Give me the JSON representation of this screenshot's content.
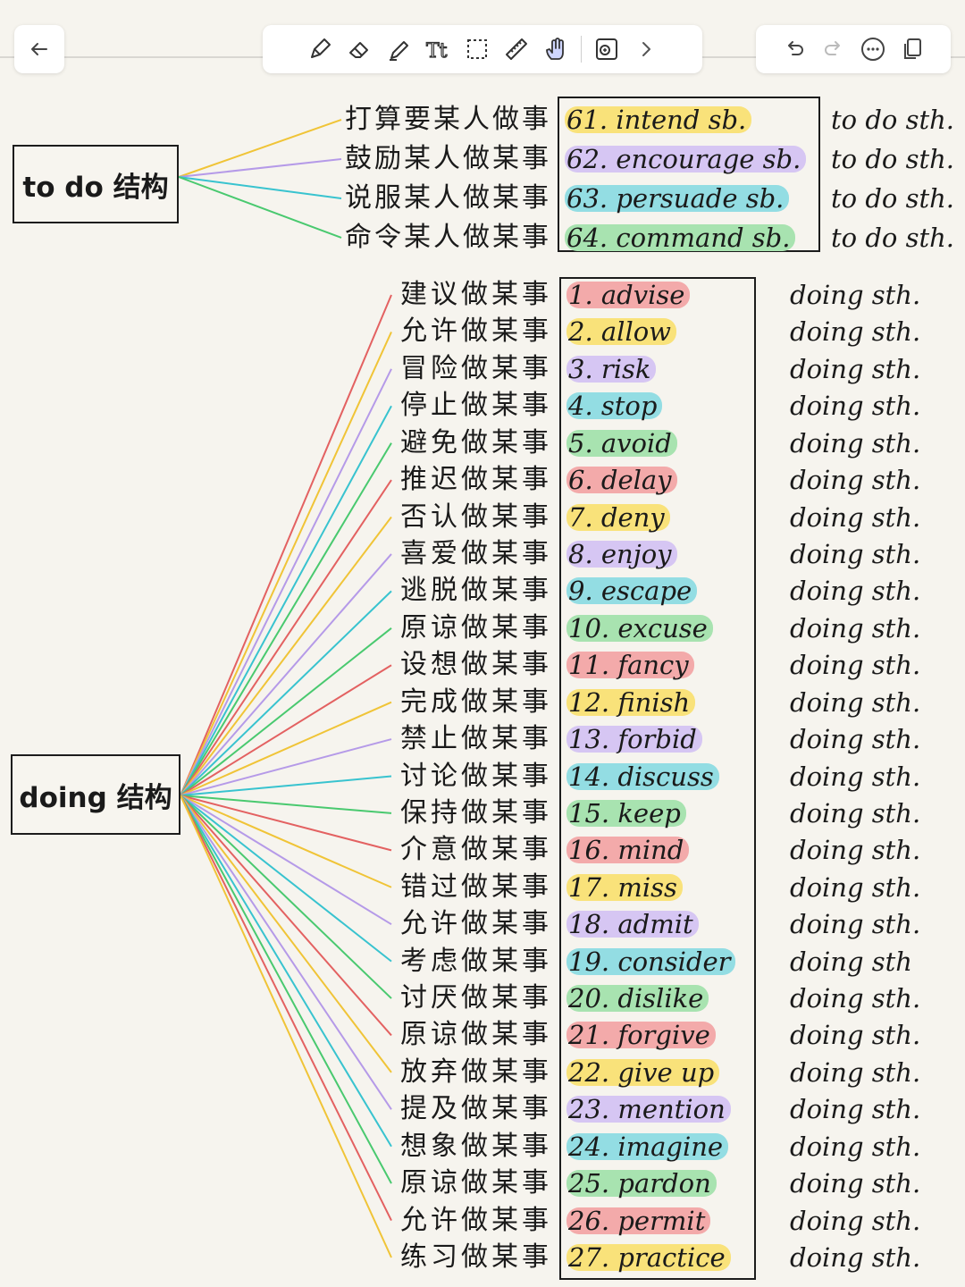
{
  "toolbar": {
    "left_icons": [
      "back-arrow-icon"
    ],
    "center_icons": [
      "pen-icon",
      "eraser-icon",
      "highlighter-icon",
      "text-tool-icon",
      "lasso-select-icon",
      "ruler-icon",
      "hand-icon",
      "shapes-icon",
      "chevron-right-icon"
    ],
    "right_icons": [
      "undo-icon",
      "redo-icon",
      "more-icon",
      "pages-icon"
    ]
  },
  "colors": {
    "yellow": "#f9e27a",
    "purple": "#d6c6f3",
    "teal": "#93dde3",
    "green": "#a8e3b0",
    "red": "#f3aaaa",
    "line_yellow": "#f0c437",
    "line_purple": "#b59ae8",
    "line_teal": "#38c3cf",
    "line_green": "#49c96f",
    "line_red": "#e36161"
  },
  "todo_section": {
    "label": "to do 结构",
    "rows": [
      {
        "cn": "打算要某人做事",
        "en": "61. intend sb.",
        "tail": "to do sth.",
        "color": "yellow"
      },
      {
        "cn": "鼓励某人做某事",
        "en": "62. encourage sb.",
        "tail": "to do sth.",
        "color": "purple"
      },
      {
        "cn": "说服某人做某事",
        "en": "63. persuade sb.",
        "tail": "to do sth.",
        "color": "teal"
      },
      {
        "cn": "命令某人做某事",
        "en": "64. command sb.",
        "tail": "to do sth.",
        "color": "green"
      }
    ]
  },
  "doing_section": {
    "label": "doing 结构",
    "rows": [
      {
        "cn": "建议做某事",
        "en": "1. advise",
        "tail": "doing sth.",
        "color": "red"
      },
      {
        "cn": "允许做某事",
        "en": "2. allow",
        "tail": "doing sth.",
        "color": "yellow"
      },
      {
        "cn": "冒险做某事",
        "en": "3. risk",
        "tail": "doing sth.",
        "color": "purple"
      },
      {
        "cn": "停止做某事",
        "en": "4. stop",
        "tail": "doing sth.",
        "color": "teal"
      },
      {
        "cn": "避免做某事",
        "en": "5. avoid",
        "tail": "doing sth.",
        "color": "green"
      },
      {
        "cn": "推迟做某事",
        "en": "6. delay",
        "tail": "doing sth.",
        "color": "red"
      },
      {
        "cn": "否认做某事",
        "en": "7. deny",
        "tail": "doing sth.",
        "color": "yellow"
      },
      {
        "cn": "喜爱做某事",
        "en": "8. enjoy",
        "tail": "doing sth.",
        "color": "purple"
      },
      {
        "cn": "逃脱做某事",
        "en": "9. escape",
        "tail": "doing sth.",
        "color": "teal"
      },
      {
        "cn": "原谅做某事",
        "en": "10. excuse",
        "tail": "doing sth.",
        "color": "green"
      },
      {
        "cn": "设想做某事",
        "en": "11. fancy",
        "tail": "doing sth.",
        "color": "red"
      },
      {
        "cn": "完成做某事",
        "en": "12. finish",
        "tail": "doing sth.",
        "color": "yellow"
      },
      {
        "cn": "禁止做某事",
        "en": "13. forbid",
        "tail": "doing sth.",
        "color": "purple"
      },
      {
        "cn": "讨论做某事",
        "en": "14. discuss",
        "tail": "doing sth.",
        "color": "teal"
      },
      {
        "cn": "保持做某事",
        "en": "15. keep",
        "tail": "doing sth.",
        "color": "green"
      },
      {
        "cn": "介意做某事",
        "en": "16. mind",
        "tail": "doing sth.",
        "color": "red"
      },
      {
        "cn": "错过做某事",
        "en": "17. miss",
        "tail": "doing sth.",
        "color": "yellow"
      },
      {
        "cn": "允许做某事",
        "en": "18. admit",
        "tail": "doing sth.",
        "color": "purple"
      },
      {
        "cn": "考虑做某事",
        "en": "19. consider",
        "tail": "doing sth",
        "color": "teal"
      },
      {
        "cn": "讨厌做某事",
        "en": "20. dislike",
        "tail": "doing sth.",
        "color": "green"
      },
      {
        "cn": "原谅做某事",
        "en": "21. forgive",
        "tail": "doing sth.",
        "color": "red"
      },
      {
        "cn": "放弃做某事",
        "en": "22. give up",
        "tail": "doing sth.",
        "color": "yellow"
      },
      {
        "cn": "提及做某事",
        "en": "23. mention",
        "tail": "doing sth.",
        "color": "purple"
      },
      {
        "cn": "想象做某事",
        "en": "24. imagine",
        "tail": "doing sth.",
        "color": "teal"
      },
      {
        "cn": "原谅做某事",
        "en": "25. pardon",
        "tail": "doing sth.",
        "color": "green"
      },
      {
        "cn": "允许做某事",
        "en": "26. permit",
        "tail": "doing sth.",
        "color": "red"
      },
      {
        "cn": "练习做某事",
        "en": "27. practice",
        "tail": "doing sth.",
        "color": "yellow"
      }
    ]
  }
}
